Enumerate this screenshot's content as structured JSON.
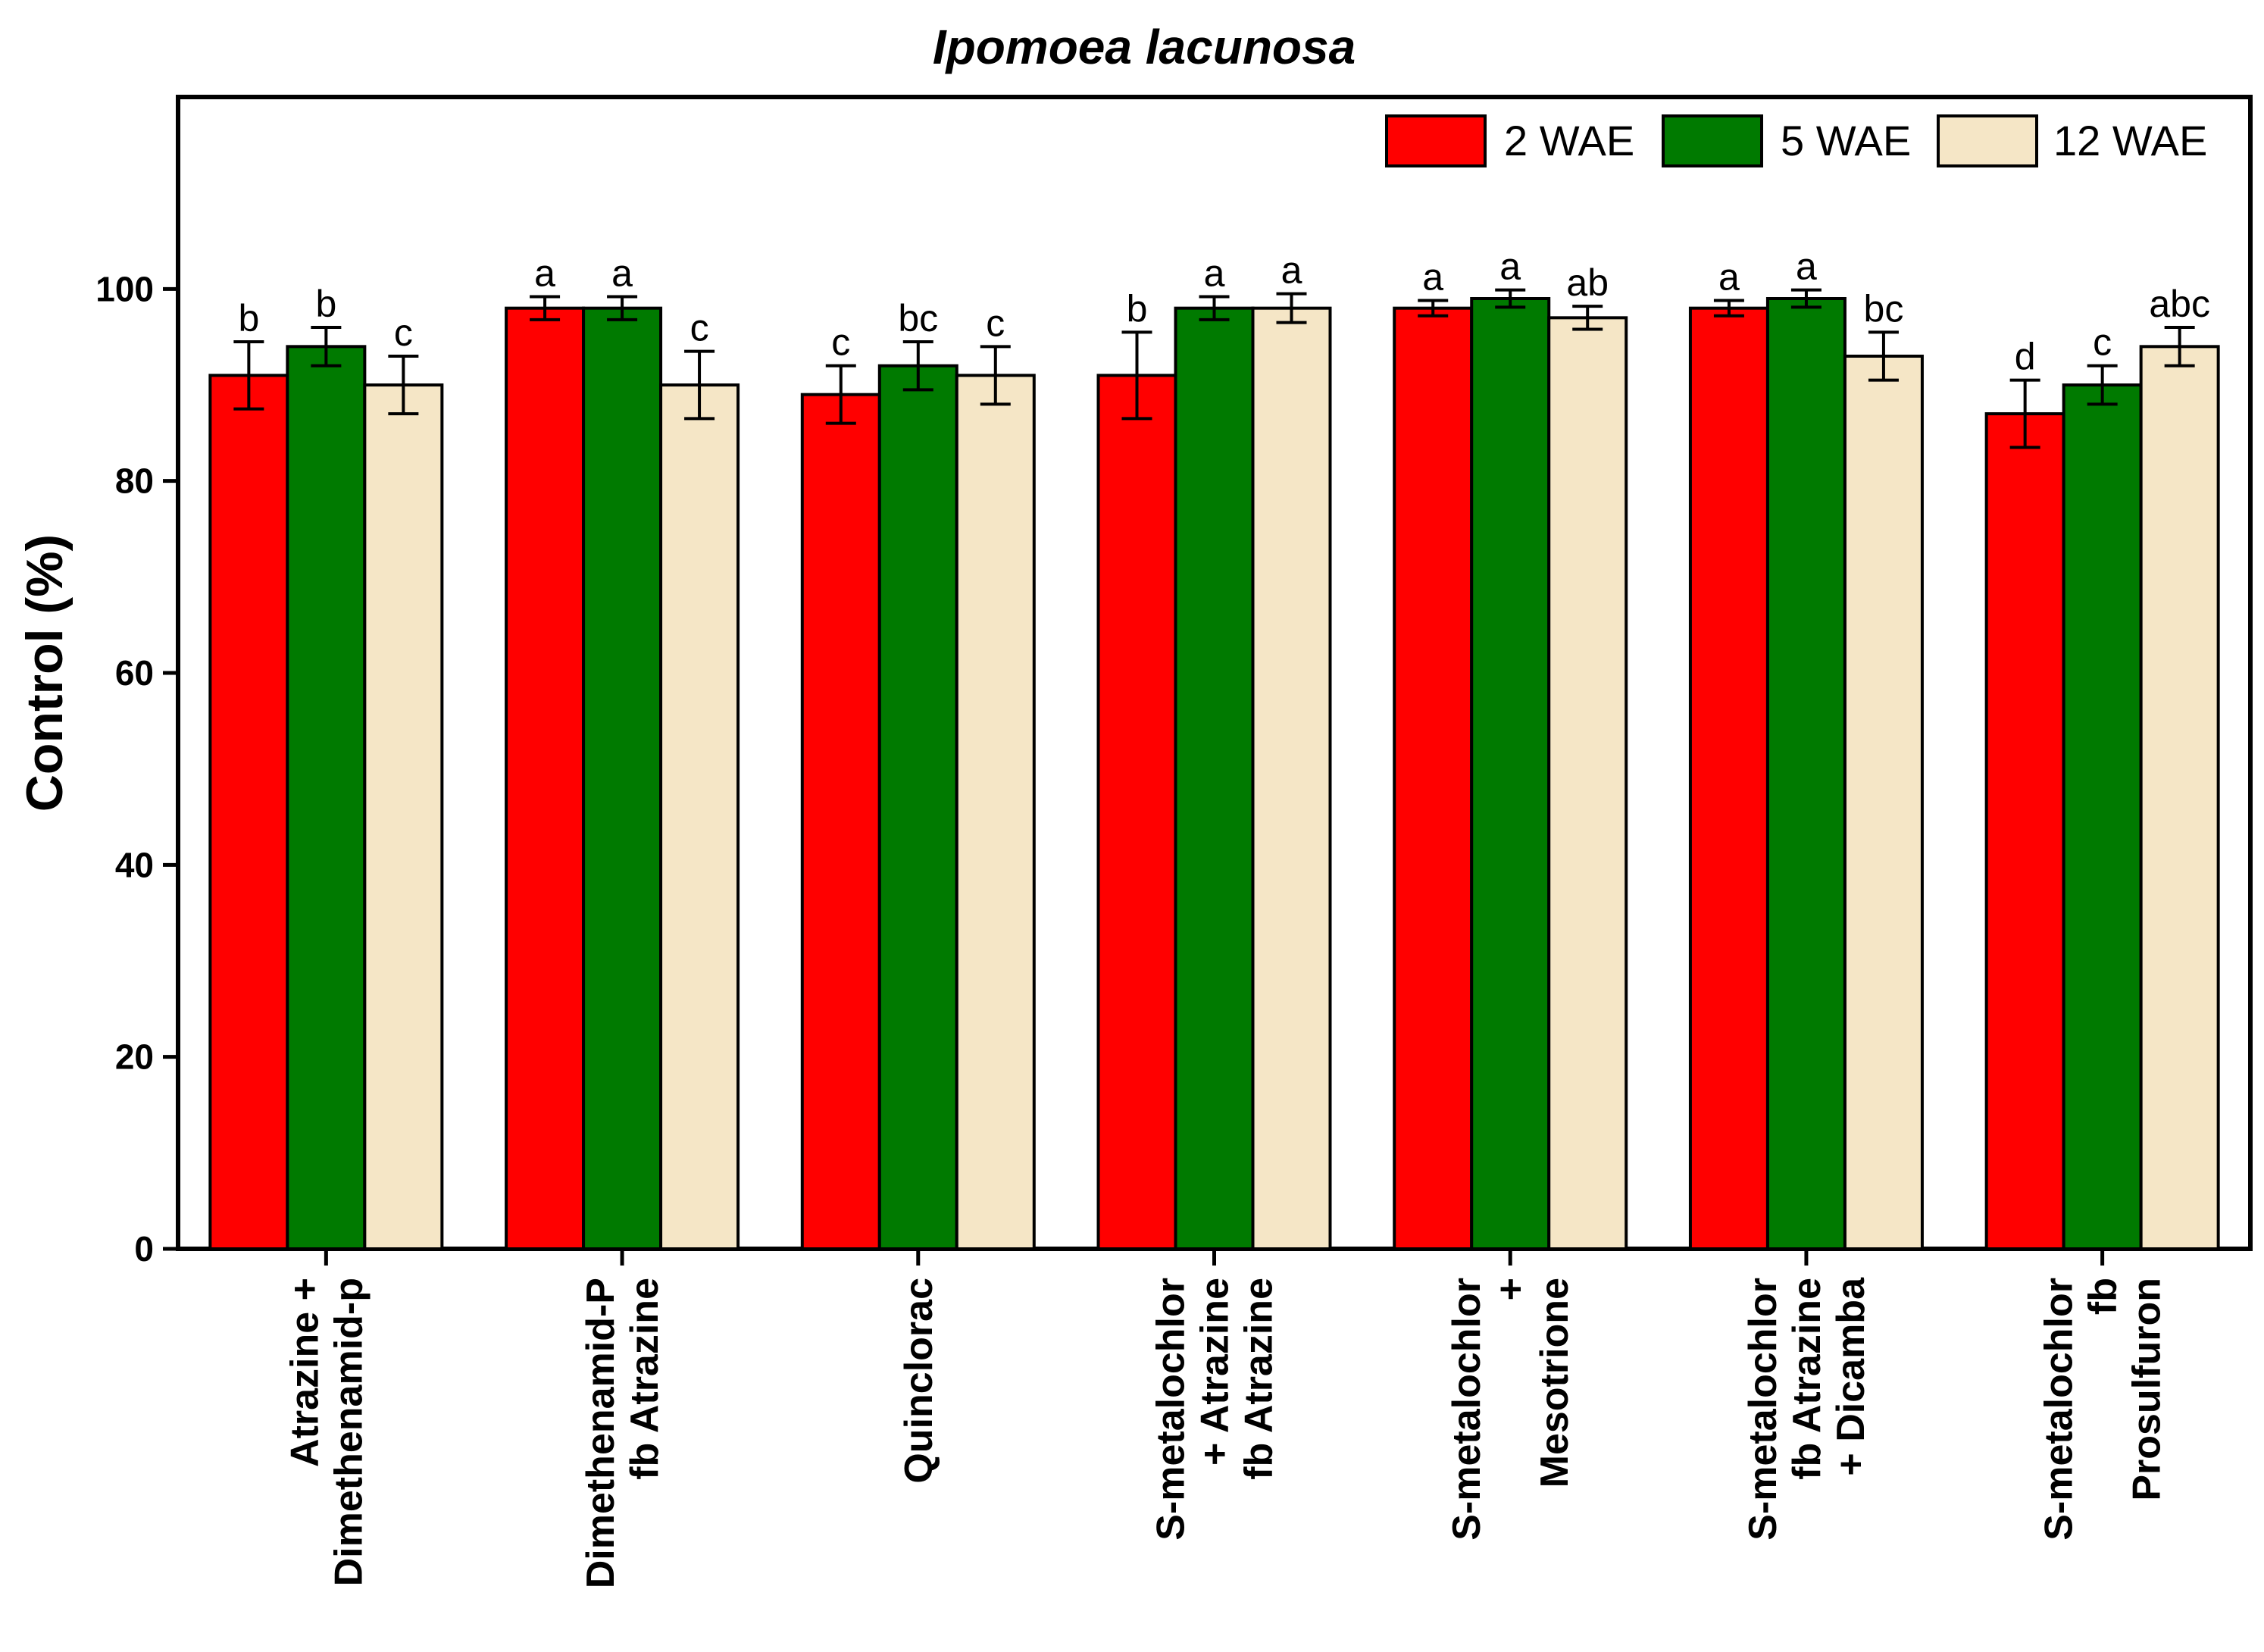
{
  "chart_data": {
    "type": "bar",
    "title": "Ipomoea lacunosa",
    "xlabel": "",
    "ylabel": "Control (%)",
    "ylim": [
      0,
      120
    ],
    "yticks": [
      0,
      20,
      40,
      60,
      80,
      100
    ],
    "grid": false,
    "legend_position": "top-right",
    "categories": [
      [
        "Atrazine +",
        "Dimethenamid-p"
      ],
      [
        "Dimethenamid-P",
        "fb Atrazine"
      ],
      [
        "Quinclorac"
      ],
      [
        "S-metalochlor",
        "+ Atrazine",
        "fb Atrazine"
      ],
      [
        "S-metalochlor",
        "+",
        "Mesotrione"
      ],
      [
        "S-metalochlor",
        "fb Atrazine",
        "+ Dicamba"
      ],
      [
        "S-metalochlor",
        "fb",
        "Prosulfuron"
      ]
    ],
    "series": [
      {
        "name": "2 WAE",
        "color": "#ff0000",
        "values": [
          91,
          98,
          89,
          91,
          98,
          98,
          87
        ],
        "errors": [
          3.5,
          1.2,
          3,
          4.5,
          0.8,
          0.8,
          3.5
        ],
        "letters": [
          "b",
          "a",
          "c",
          "b",
          "a",
          "a",
          "d"
        ]
      },
      {
        "name": "5 WAE",
        "color": "#007a00",
        "values": [
          94,
          98,
          92,
          98,
          99,
          99,
          90
        ],
        "errors": [
          2,
          1.2,
          2.5,
          1.2,
          0.9,
          0.9,
          2
        ],
        "letters": [
          "b",
          "a",
          "bc",
          "a",
          "a",
          "a",
          "c"
        ]
      },
      {
        "name": "12 WAE",
        "color": "#f5e6c6",
        "values": [
          90,
          90,
          91,
          98,
          97,
          93,
          94
        ],
        "errors": [
          3,
          3.5,
          3,
          1.5,
          1.2,
          2.5,
          2
        ],
        "letters": [
          "c",
          "c",
          "c",
          "a",
          "ab",
          "bc",
          "abc"
        ]
      }
    ]
  }
}
